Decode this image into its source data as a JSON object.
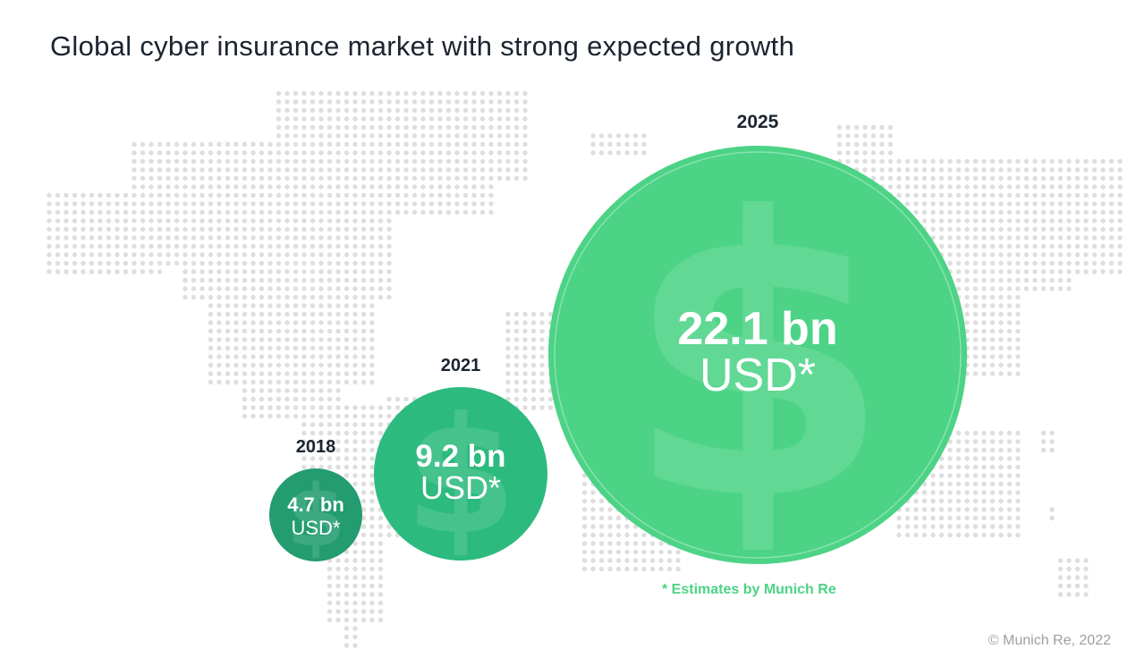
{
  "title": "Global cyber insurance market with strong expected growth",
  "chart_data": {
    "type": "bubble",
    "unit": "USD*",
    "points": [
      {
        "year": "2018",
        "value": 4.7,
        "label": "4.7 bn",
        "color": "#239c70"
      },
      {
        "year": "2021",
        "value": 9.2,
        "label": "9.2 bn",
        "color": "#2dba7e"
      },
      {
        "year": "2025",
        "value": 22.1,
        "label": "22.1 bn",
        "color": "#4cd386"
      }
    ],
    "icon": "dollar-sign-icon",
    "background": "dotted-world-map"
  },
  "footnote": "* Estimates by Munich Re",
  "copyright": "© Munich Re, 2022"
}
